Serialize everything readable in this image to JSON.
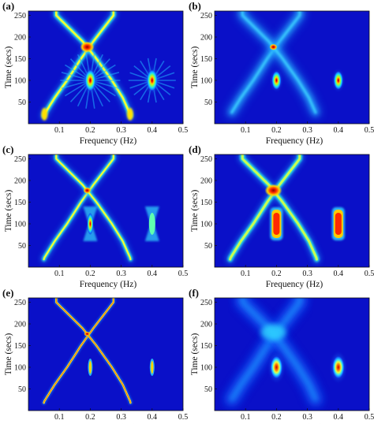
{
  "colors": {
    "background": "#0a10c8",
    "track_outer": "#1aa0ff",
    "track_mid": "#30f0e0",
    "track_inner": "#f4ff30",
    "hot": "#ff2a00",
    "core": "#9a0000"
  },
  "chart_data": [
    {
      "panel_label": "(a)",
      "type": "heatmap",
      "xlabel": "Frequency (Hz)",
      "ylabel": "Time (secs)",
      "xlim": [
        0,
        0.5
      ],
      "ylim": [
        0,
        260
      ],
      "xticks": [
        "0.1",
        "0.2",
        "0.3",
        "0.4",
        "0.5"
      ],
      "yticks": [
        "50",
        "100",
        "150",
        "200",
        "250"
      ],
      "features": {
        "rising_chirp": {
          "t": [
            20,
            60,
            100,
            150,
            190,
            250
          ],
          "f": [
            0.05,
            0.085,
            0.125,
            0.17,
            0.21,
            0.275
          ]
        },
        "falling_chirp": {
          "t": [
            20,
            60,
            100,
            150,
            190,
            250
          ],
          "f": [
            0.33,
            0.305,
            0.27,
            0.22,
            0.175,
            0.09
          ]
        },
        "crossing": {
          "f": 0.19,
          "t": 177
        },
        "components": [
          {
            "f": 0.2,
            "t": 100
          },
          {
            "f": 0.4,
            "t": 100
          }
        ],
        "resolution": "low",
        "style": "burst"
      }
    },
    {
      "panel_label": "(b)",
      "type": "heatmap",
      "xlabel": "Frequency (Hz)",
      "ylabel": "Time (secs)",
      "xlim": [
        0,
        0.5
      ],
      "ylim": [
        0,
        260
      ],
      "xticks": [
        "0.1",
        "0.2",
        "0.3",
        "0.4",
        "0.5"
      ],
      "yticks": [
        "50",
        "100",
        "150",
        "200",
        "250"
      ],
      "features": {
        "rising_chirp": {
          "t": [
            20,
            60,
            100,
            150,
            190,
            250
          ],
          "f": [
            0.05,
            0.085,
            0.125,
            0.17,
            0.21,
            0.275
          ]
        },
        "falling_chirp": {
          "t": [
            20,
            60,
            100,
            150,
            190,
            250
          ],
          "f": [
            0.33,
            0.305,
            0.27,
            0.22,
            0.175,
            0.09
          ]
        },
        "crossing": {
          "f": 0.19,
          "t": 177
        },
        "components": [
          {
            "f": 0.2,
            "t": 100
          },
          {
            "f": 0.4,
            "t": 100
          }
        ],
        "resolution": "smooth",
        "style": "smooth"
      }
    },
    {
      "panel_label": "(c)",
      "type": "heatmap",
      "xlabel": "Frequency (Hz)",
      "ylabel": "Time (secs)",
      "xlim": [
        0,
        0.5
      ],
      "ylim": [
        0,
        260
      ],
      "xticks": [
        "0.1",
        "0.2",
        "0.3",
        "0.4",
        "0.5"
      ],
      "yticks": [
        "50",
        "100",
        "150",
        "200",
        "250"
      ],
      "features": {
        "rising_chirp": {
          "t": [
            20,
            60,
            100,
            150,
            190,
            250
          ],
          "f": [
            0.05,
            0.085,
            0.125,
            0.17,
            0.21,
            0.275
          ]
        },
        "falling_chirp": {
          "t": [
            20,
            60,
            100,
            150,
            190,
            250
          ],
          "f": [
            0.33,
            0.305,
            0.27,
            0.22,
            0.175,
            0.09
          ]
        },
        "crossing": {
          "f": 0.19,
          "t": 177
        },
        "components": [
          {
            "f": 0.2,
            "t": 100
          },
          {
            "f": 0.4,
            "t": 100
          }
        ],
        "resolution": "medium",
        "style": "hourglass"
      }
    },
    {
      "panel_label": "(d)",
      "type": "heatmap",
      "xlabel": "Frequency (Hz)",
      "ylabel": "Time (secs)",
      "xlim": [
        0,
        0.5
      ],
      "ylim": [
        0,
        260
      ],
      "xticks": [
        "0.1",
        "0.2",
        "0.3",
        "0.4",
        "0.5"
      ],
      "yticks": [
        "50",
        "100",
        "150",
        "200",
        "250"
      ],
      "features": {
        "rising_chirp": {
          "t": [
            20,
            60,
            100,
            150,
            190,
            250
          ],
          "f": [
            0.05,
            0.085,
            0.125,
            0.17,
            0.21,
            0.275
          ]
        },
        "falling_chirp": {
          "t": [
            20,
            60,
            100,
            150,
            190,
            250
          ],
          "f": [
            0.33,
            0.305,
            0.27,
            0.22,
            0.175,
            0.09
          ]
        },
        "crossing": {
          "f": 0.19,
          "t": 177
        },
        "components": [
          {
            "f": 0.2,
            "t": 100
          },
          {
            "f": 0.4,
            "t": 100
          }
        ],
        "resolution": "medium",
        "style": "bar"
      }
    },
    {
      "panel_label": "(e)",
      "type": "heatmap",
      "xlabel": "Frequency (Hz)",
      "ylabel": "Time (secs)",
      "xlim": [
        0,
        0.5
      ],
      "ylim": [
        0,
        260
      ],
      "xticks": [
        "0.1",
        "0.2",
        "0.3",
        "0.4",
        "0.5"
      ],
      "yticks": [
        "50",
        "100",
        "150",
        "200",
        "250"
      ],
      "features": {
        "rising_chirp": {
          "t": [
            20,
            60,
            100,
            150,
            190,
            250
          ],
          "f": [
            0.05,
            0.085,
            0.125,
            0.17,
            0.21,
            0.275
          ]
        },
        "falling_chirp": {
          "t": [
            20,
            60,
            100,
            150,
            190,
            250
          ],
          "f": [
            0.33,
            0.305,
            0.27,
            0.22,
            0.175,
            0.09
          ]
        },
        "crossing": {
          "f": 0.19,
          "t": 177
        },
        "components": [
          {
            "f": 0.2,
            "t": 100
          },
          {
            "f": 0.4,
            "t": 100
          }
        ],
        "resolution": "high",
        "style": "thin"
      }
    },
    {
      "panel_label": "(f)",
      "type": "heatmap",
      "xlabel": "Frequency (Hz)",
      "ylabel": "Time (secs)",
      "xlim": [
        0,
        0.5
      ],
      "ylim": [
        0,
        260
      ],
      "xticks": [
        "0.1",
        "0.2",
        "0.3",
        "0.4",
        "0.5"
      ],
      "yticks": [
        "50",
        "100",
        "150",
        "200",
        "250"
      ],
      "features": {
        "rising_chirp": {
          "t": [
            20,
            60,
            100,
            150,
            190,
            250
          ],
          "f": [
            0.05,
            0.085,
            0.125,
            0.17,
            0.21,
            0.275
          ]
        },
        "falling_chirp": {
          "t": [
            20,
            60,
            100,
            150,
            190,
            250
          ],
          "f": [
            0.33,
            0.305,
            0.27,
            0.22,
            0.175,
            0.09
          ]
        },
        "crossing": {
          "f": 0.19,
          "t": 177
        },
        "components": [
          {
            "f": 0.2,
            "t": 100
          },
          {
            "f": 0.4,
            "t": 100
          }
        ],
        "resolution": "very-low",
        "style": "blur"
      }
    }
  ]
}
